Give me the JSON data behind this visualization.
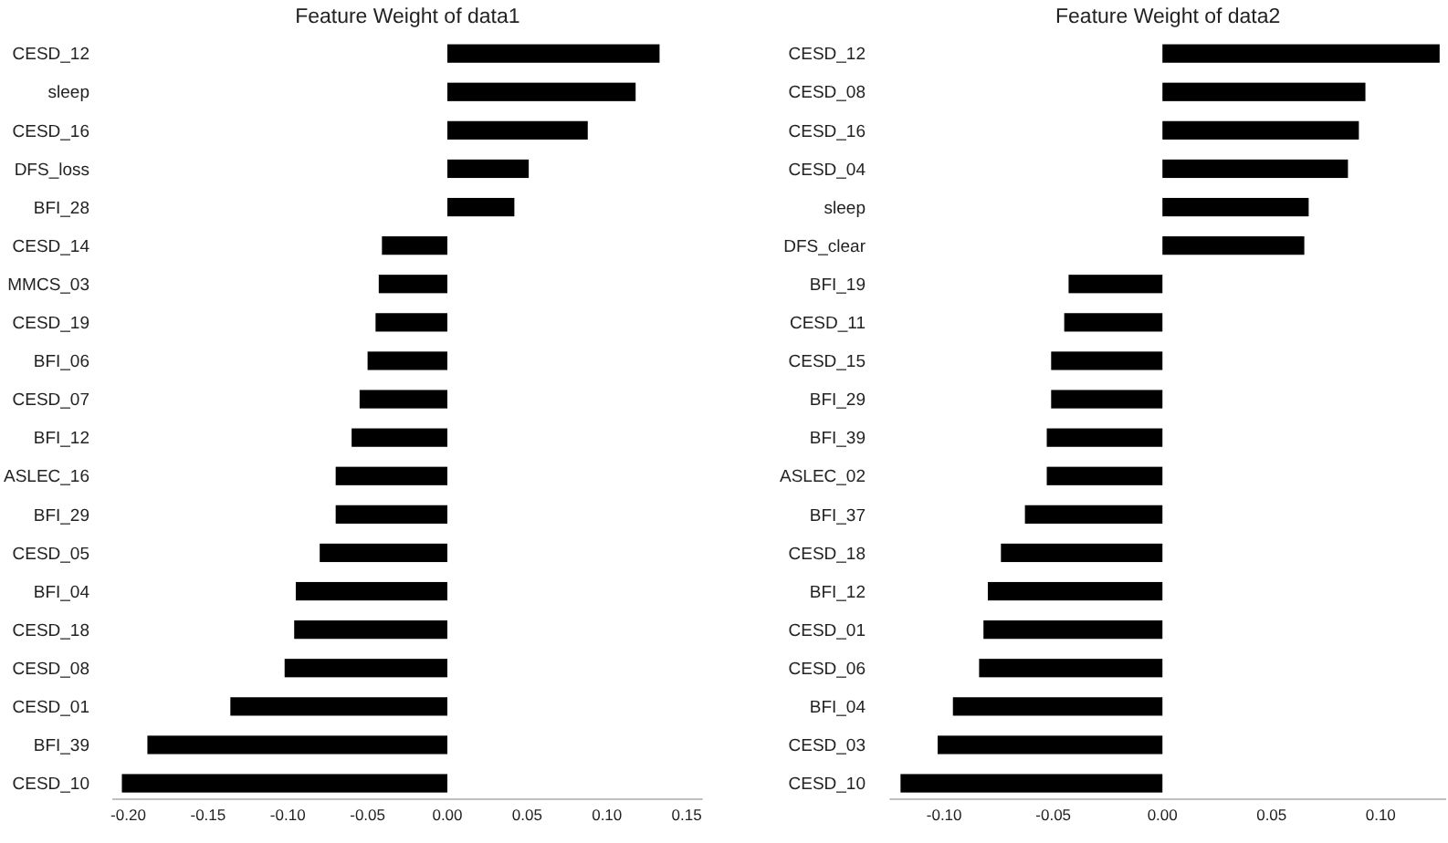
{
  "chart_data": [
    {
      "type": "bar",
      "orientation": "horizontal",
      "title": "Feature Weight of data1",
      "categories": [
        "CESD_12",
        "sleep",
        "CESD_16",
        "DFS_loss",
        "BFI_28",
        "CESD_14",
        "MMCS_03",
        "CESD_19",
        "BFI_06",
        "CESD_07",
        "BFI_12",
        "ASLEC_16",
        "BFI_29",
        "CESD_05",
        "BFI_04",
        "CESD_18",
        "CESD_08",
        "CESD_01",
        "BFI_39",
        "CESD_10"
      ],
      "values": [
        0.133,
        0.118,
        0.088,
        0.051,
        0.042,
        -0.041,
        -0.043,
        -0.045,
        -0.05,
        -0.055,
        -0.06,
        -0.07,
        -0.07,
        -0.08,
        -0.095,
        -0.096,
        -0.102,
        -0.136,
        -0.188,
        -0.204
      ],
      "color": "#000000",
      "xlim": [
        -0.21,
        0.16
      ],
      "xticks": [
        {
          "value": -0.2,
          "label": "-0.20"
        },
        {
          "value": -0.15,
          "label": "-0.15"
        },
        {
          "value": -0.1,
          "label": "-0.10"
        },
        {
          "value": -0.05,
          "label": "-0.05"
        },
        {
          "value": 0,
          "label": "0.00"
        },
        {
          "value": 0.05,
          "label": "0.05"
        },
        {
          "value": 0.1,
          "label": "0.10"
        },
        {
          "value": 0.15,
          "label": "0.15"
        }
      ]
    },
    {
      "type": "bar",
      "orientation": "horizontal",
      "title": "Feature Weight of data2",
      "categories": [
        "CESD_12",
        "CESD_08",
        "CESD_16",
        "CESD_04",
        "sleep",
        "DFS_clear",
        "BFI_19",
        "CESD_11",
        "CESD_15",
        "BFI_29",
        "BFI_39",
        "ASLEC_02",
        "BFI_37",
        "CESD_18",
        "BFI_12",
        "CESD_01",
        "CESD_06",
        "BFI_04",
        "CESD_03",
        "CESD_10"
      ],
      "values": [
        0.127,
        0.093,
        0.09,
        0.085,
        0.067,
        0.065,
        -0.043,
        -0.045,
        -0.051,
        -0.051,
        -0.053,
        -0.053,
        -0.063,
        -0.074,
        -0.08,
        -0.082,
        -0.084,
        -0.096,
        -0.103,
        -0.12
      ],
      "color": "#000000",
      "xlim": [
        -0.125,
        0.13
      ],
      "xticks": [
        {
          "value": -0.1,
          "label": "-0.10"
        },
        {
          "value": -0.05,
          "label": "-0.05"
        },
        {
          "value": 0,
          "label": "0.00"
        },
        {
          "value": 0.05,
          "label": "0.05"
        },
        {
          "value": 0.1,
          "label": "0.10"
        }
      ]
    }
  ]
}
